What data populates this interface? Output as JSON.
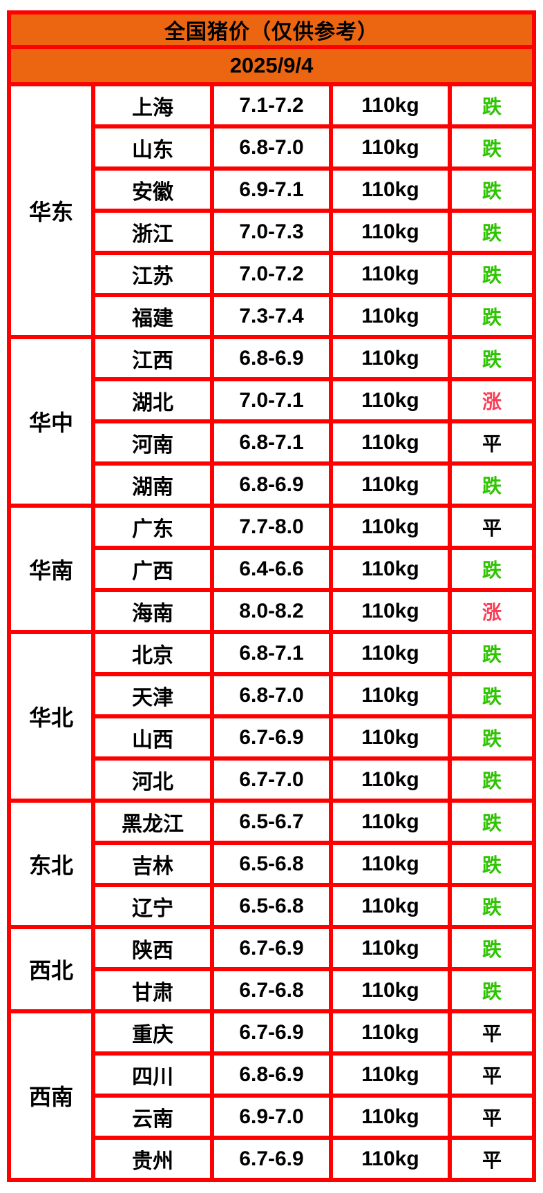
{
  "header": {
    "title": "全国猪价（仅供参考）",
    "date": "2025/9/4"
  },
  "colors": {
    "header_orange": "#EC6511",
    "border_red": "#FE0000",
    "trend_down_green": "#2DC400",
    "trend_up_red": "#FA3C55",
    "trend_flat_black": "#000000"
  },
  "table": {
    "weight_label": "110kg",
    "trend_legend": {
      "down": "跌",
      "up": "涨",
      "flat": "平"
    },
    "regions": [
      {
        "name": "华东",
        "rows": [
          {
            "province": "上海",
            "price": "7.1-7.2",
            "weight": "110kg",
            "trend": "跌",
            "direction": "down"
          },
          {
            "province": "山东",
            "price": "6.8-7.0",
            "weight": "110kg",
            "trend": "跌",
            "direction": "down"
          },
          {
            "province": "安徽",
            "price": "6.9-7.1",
            "weight": "110kg",
            "trend": "跌",
            "direction": "down"
          },
          {
            "province": "浙江",
            "price": "7.0-7.3",
            "weight": "110kg",
            "trend": "跌",
            "direction": "down"
          },
          {
            "province": "江苏",
            "price": "7.0-7.2",
            "weight": "110kg",
            "trend": "跌",
            "direction": "down"
          },
          {
            "province": "福建",
            "price": "7.3-7.4",
            "weight": "110kg",
            "trend": "跌",
            "direction": "down"
          }
        ]
      },
      {
        "name": "华中",
        "rows": [
          {
            "province": "江西",
            "price": "6.8-6.9",
            "weight": "110kg",
            "trend": "跌",
            "direction": "down"
          },
          {
            "province": "湖北",
            "price": "7.0-7.1",
            "weight": "110kg",
            "trend": "涨",
            "direction": "up"
          },
          {
            "province": "河南",
            "price": "6.8-7.1",
            "weight": "110kg",
            "trend": "平",
            "direction": "flat"
          },
          {
            "province": "湖南",
            "price": "6.8-6.9",
            "weight": "110kg",
            "trend": "跌",
            "direction": "down"
          }
        ]
      },
      {
        "name": "华南",
        "rows": [
          {
            "province": "广东",
            "price": "7.7-8.0",
            "weight": "110kg",
            "trend": "平",
            "direction": "flat"
          },
          {
            "province": "广西",
            "price": "6.4-6.6",
            "weight": "110kg",
            "trend": "跌",
            "direction": "down"
          },
          {
            "province": "海南",
            "price": "8.0-8.2",
            "weight": "110kg",
            "trend": "涨",
            "direction": "up"
          }
        ]
      },
      {
        "name": "华北",
        "rows": [
          {
            "province": "北京",
            "price": "6.8-7.1",
            "weight": "110kg",
            "trend": "跌",
            "direction": "down"
          },
          {
            "province": "天津",
            "price": "6.8-7.0",
            "weight": "110kg",
            "trend": "跌",
            "direction": "down"
          },
          {
            "province": "山西",
            "price": "6.7-6.9",
            "weight": "110kg",
            "trend": "跌",
            "direction": "down"
          },
          {
            "province": "河北",
            "price": "6.7-7.0",
            "weight": "110kg",
            "trend": "跌",
            "direction": "down"
          }
        ]
      },
      {
        "name": "东北",
        "rows": [
          {
            "province": "黑龙江",
            "price": "6.5-6.7",
            "weight": "110kg",
            "trend": "跌",
            "direction": "down"
          },
          {
            "province": "吉林",
            "price": "6.5-6.8",
            "weight": "110kg",
            "trend": "跌",
            "direction": "down"
          },
          {
            "province": "辽宁",
            "price": "6.5-6.8",
            "weight": "110kg",
            "trend": "跌",
            "direction": "down"
          }
        ]
      },
      {
        "name": "西北",
        "rows": [
          {
            "province": "陕西",
            "price": "6.7-6.9",
            "weight": "110kg",
            "trend": "跌",
            "direction": "down"
          },
          {
            "province": "甘肃",
            "price": "6.7-6.8",
            "weight": "110kg",
            "trend": "跌",
            "direction": "down"
          }
        ]
      },
      {
        "name": "西南",
        "rows": [
          {
            "province": "重庆",
            "price": "6.7-6.9",
            "weight": "110kg",
            "trend": "平",
            "direction": "flat"
          },
          {
            "province": "四川",
            "price": "6.8-6.9",
            "weight": "110kg",
            "trend": "平",
            "direction": "flat"
          },
          {
            "province": "云南",
            "price": "6.9-7.0",
            "weight": "110kg",
            "trend": "平",
            "direction": "flat"
          },
          {
            "province": "贵州",
            "price": "6.7-6.9",
            "weight": "110kg",
            "trend": "平",
            "direction": "flat"
          }
        ]
      }
    ]
  },
  "chart_data": {
    "type": "table",
    "title": "全国猪价（仅供参考）",
    "subtitle": "2025/9/4",
    "rows": [
      [
        "华东",
        "上海",
        "7.1-7.2",
        "110kg",
        "跌"
      ],
      [
        "华东",
        "山东",
        "6.8-7.0",
        "110kg",
        "跌"
      ],
      [
        "华东",
        "安徽",
        "6.9-7.1",
        "110kg",
        "跌"
      ],
      [
        "华东",
        "浙江",
        "7.0-7.3",
        "110kg",
        "跌"
      ],
      [
        "华东",
        "江苏",
        "7.0-7.2",
        "110kg",
        "跌"
      ],
      [
        "华东",
        "福建",
        "7.3-7.4",
        "110kg",
        "跌"
      ],
      [
        "华中",
        "江西",
        "6.8-6.9",
        "110kg",
        "跌"
      ],
      [
        "华中",
        "湖北",
        "7.0-7.1",
        "110kg",
        "涨"
      ],
      [
        "华中",
        "河南",
        "6.8-7.1",
        "110kg",
        "平"
      ],
      [
        "华中",
        "湖南",
        "6.8-6.9",
        "110kg",
        "跌"
      ],
      [
        "华南",
        "广东",
        "7.7-8.0",
        "110kg",
        "平"
      ],
      [
        "华南",
        "广西",
        "6.4-6.6",
        "110kg",
        "跌"
      ],
      [
        "华南",
        "海南",
        "8.0-8.2",
        "110kg",
        "涨"
      ],
      [
        "华北",
        "北京",
        "6.8-7.1",
        "110kg",
        "跌"
      ],
      [
        "华北",
        "天津",
        "6.8-7.0",
        "110kg",
        "跌"
      ],
      [
        "华北",
        "山西",
        "6.7-6.9",
        "110kg",
        "跌"
      ],
      [
        "华北",
        "河北",
        "6.7-7.0",
        "110kg",
        "跌"
      ],
      [
        "东北",
        "黑龙江",
        "6.5-6.7",
        "110kg",
        "跌"
      ],
      [
        "东北",
        "吉林",
        "6.5-6.8",
        "110kg",
        "跌"
      ],
      [
        "东北",
        "辽宁",
        "6.5-6.8",
        "110kg",
        "跌"
      ],
      [
        "西北",
        "陕西",
        "6.7-6.9",
        "110kg",
        "跌"
      ],
      [
        "西北",
        "甘肃",
        "6.7-6.8",
        "110kg",
        "跌"
      ],
      [
        "西南",
        "重庆",
        "6.7-6.9",
        "110kg",
        "平"
      ],
      [
        "西南",
        "四川",
        "6.8-6.9",
        "110kg",
        "平"
      ],
      [
        "西南",
        "云南",
        "6.9-7.0",
        "110kg",
        "平"
      ],
      [
        "西南",
        "贵州",
        "6.7-6.9",
        "110kg",
        "平"
      ]
    ]
  }
}
